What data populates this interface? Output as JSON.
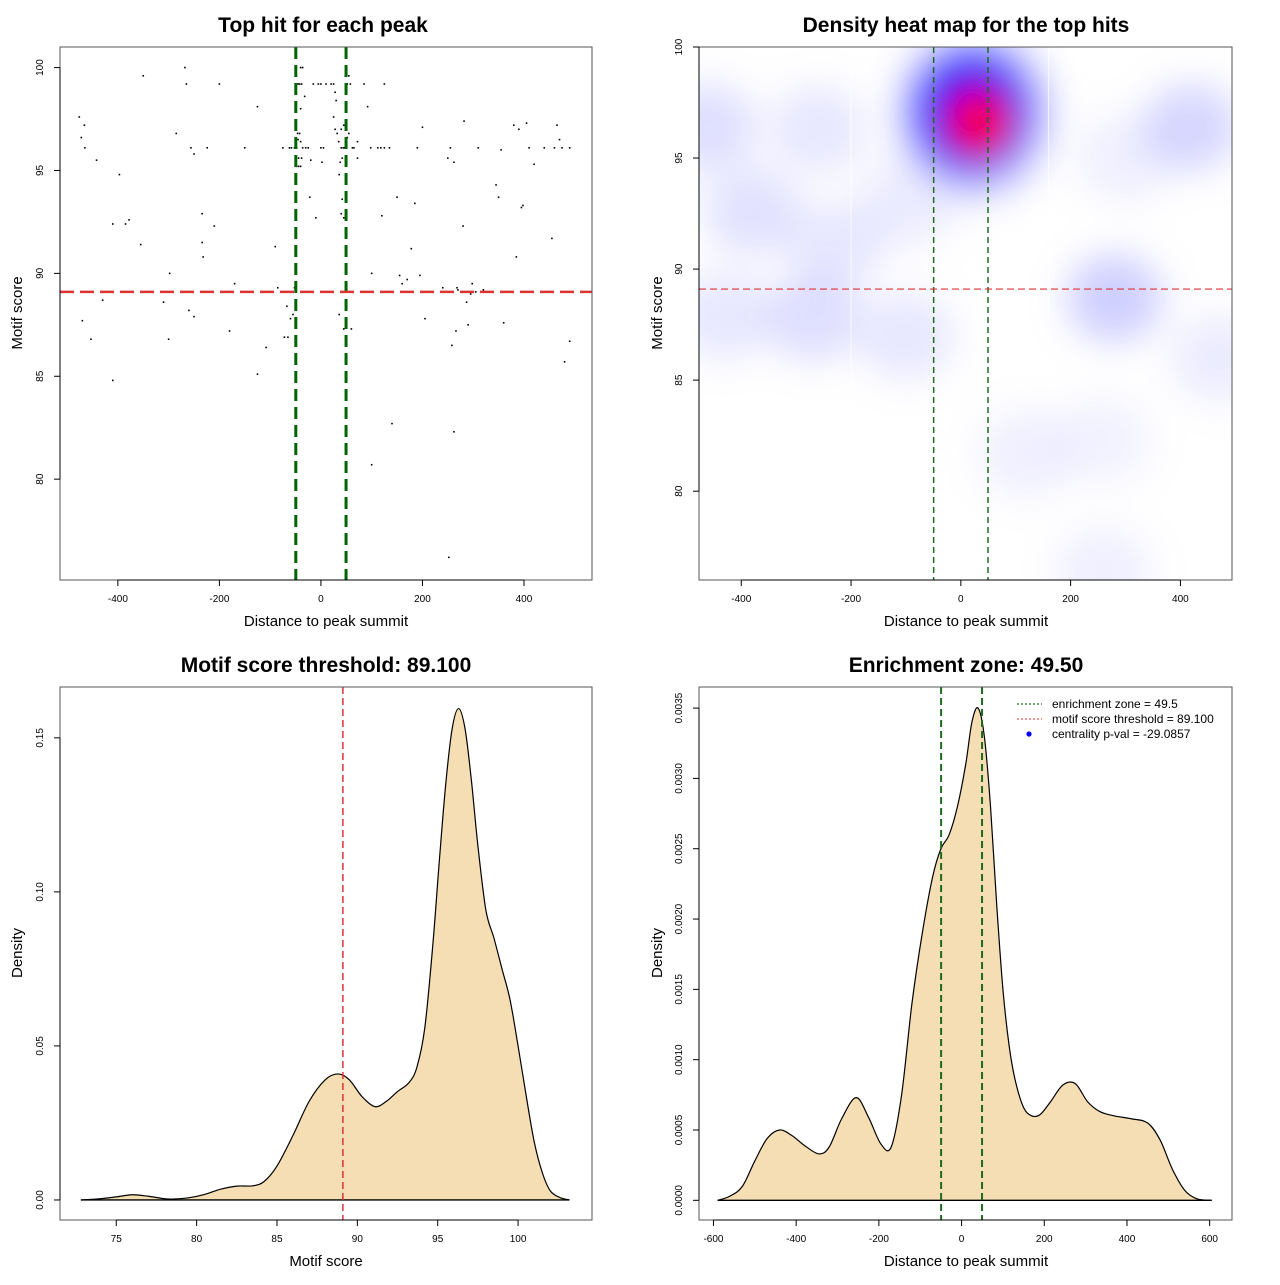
{
  "chart_data": [
    {
      "id": "scatter",
      "type": "scatter",
      "title": "Top hit for each peak",
      "xlabel": "Distance to peak summit",
      "ylabel": "Motif score",
      "xlim": [
        -514,
        534
      ],
      "ylim": [
        75.1,
        101
      ],
      "xticks": [
        -400,
        -200,
        0,
        200,
        400
      ],
      "yticks": [
        80,
        85,
        90,
        95,
        100
      ],
      "vlines": [
        -49.5,
        49.5
      ],
      "hline": 89.1,
      "vline_color": "#006400",
      "hline_color": "#dd3333",
      "points": [
        [
          -476,
          97.6
        ],
        [
          -472,
          96.6
        ],
        [
          -466,
          97.2
        ],
        [
          -465,
          96.1
        ],
        [
          -470,
          87.7
        ],
        [
          -453,
          86.8
        ],
        [
          -442,
          95.5
        ],
        [
          -430,
          88.7
        ],
        [
          -410,
          84.8
        ],
        [
          -410,
          92.4
        ],
        [
          -397,
          94.8
        ],
        [
          -385,
          92.4
        ],
        [
          -378,
          92.6
        ],
        [
          -350,
          99.6
        ],
        [
          -355,
          91.4
        ],
        [
          -300,
          86.8
        ],
        [
          -310,
          88.6
        ],
        [
          -298,
          90.0
        ],
        [
          -285,
          96.8
        ],
        [
          -268,
          100.0
        ],
        [
          -265,
          99.2
        ],
        [
          -260,
          88.2
        ],
        [
          -256,
          96.1
        ],
        [
          -250,
          87.9
        ],
        [
          -250,
          95.8
        ],
        [
          -234,
          92.9
        ],
        [
          -234,
          91.5
        ],
        [
          -232,
          90.8
        ],
        [
          -224,
          96.1
        ],
        [
          -210,
          92.3
        ],
        [
          -200,
          99.2
        ],
        [
          -180,
          87.2
        ],
        [
          -170,
          89.5
        ],
        [
          -150,
          96.1
        ],
        [
          -125,
          98.1
        ],
        [
          -125,
          85.1
        ],
        [
          -108,
          86.4
        ],
        [
          -90,
          91.3
        ],
        [
          -85,
          89.3
        ],
        [
          -75,
          96.1
        ],
        [
          -72,
          86.9
        ],
        [
          -67,
          88.4
        ],
        [
          -62,
          96.1
        ],
        [
          -58,
          96.1
        ],
        [
          -52,
          96.1
        ],
        [
          -48,
          96.1
        ],
        [
          -45,
          96.5
        ],
        [
          -44,
          95.2
        ],
        [
          -40,
          100.0
        ],
        [
          -36,
          100.0
        ],
        [
          -42,
          99.2
        ],
        [
          -38,
          99.2
        ],
        [
          -45,
          99.2
        ],
        [
          -32,
          98.6
        ],
        [
          -40,
          98.0
        ],
        [
          -42,
          96.8
        ],
        [
          -46,
          96.8
        ],
        [
          -40,
          96.4
        ],
        [
          -38,
          95.6
        ],
        [
          -44,
          95.6
        ],
        [
          -48,
          95.2
        ],
        [
          -40,
          95.2
        ],
        [
          -36,
          96.1
        ],
        [
          -30,
          96.1
        ],
        [
          -25,
          96.1
        ],
        [
          -20,
          95.5
        ],
        [
          -22,
          93.7
        ],
        [
          -15,
          99.2
        ],
        [
          -5,
          99.2
        ],
        [
          0,
          99.2
        ],
        [
          -10,
          92.7
        ],
        [
          -55,
          88.0
        ],
        [
          -60,
          87.8
        ],
        [
          -65,
          86.9
        ],
        [
          -52,
          89.3
        ],
        [
          0,
          96.1
        ],
        [
          5,
          96.1
        ],
        [
          2,
          95.4
        ],
        [
          10,
          99.2
        ],
        [
          20,
          99.2
        ],
        [
          25,
          99.2
        ],
        [
          28,
          98.8
        ],
        [
          30,
          98.4
        ],
        [
          25,
          97.6
        ],
        [
          28,
          97.0
        ],
        [
          32,
          96.8
        ],
        [
          35,
          96.4
        ],
        [
          40,
          96.1
        ],
        [
          44,
          96.1
        ],
        [
          47,
          96.1
        ],
        [
          50,
          96.1
        ],
        [
          52,
          96.6
        ],
        [
          55,
          96.8
        ],
        [
          45,
          97.2
        ],
        [
          40,
          97.0
        ],
        [
          42,
          95.6
        ],
        [
          38,
          95.4
        ],
        [
          36,
          94.8
        ],
        [
          40,
          92.9
        ],
        [
          45,
          92.7
        ],
        [
          52,
          99.2
        ],
        [
          55,
          99.6
        ],
        [
          50,
          100.0
        ],
        [
          48,
          99.6
        ],
        [
          58,
          99.2
        ],
        [
          62,
          96.1
        ],
        [
          65,
          96.1
        ],
        [
          72,
          95.6
        ],
        [
          42,
          93.6
        ],
        [
          36,
          88.0
        ],
        [
          45,
          87.3
        ],
        [
          60,
          87.3
        ],
        [
          72,
          96.4
        ],
        [
          85,
          99.2
        ],
        [
          92,
          98.1
        ],
        [
          98,
          96.1
        ],
        [
          100,
          90.0
        ],
        [
          112,
          96.1
        ],
        [
          118,
          96.1
        ],
        [
          120,
          92.8
        ],
        [
          125,
          99.2
        ],
        [
          125,
          96.1
        ],
        [
          135,
          96.1
        ],
        [
          140,
          82.7
        ],
        [
          150,
          93.7
        ],
        [
          155,
          89.9
        ],
        [
          160,
          89.5
        ],
        [
          170,
          89.7
        ],
        [
          178,
          91.2
        ],
        [
          185,
          93.4
        ],
        [
          190,
          96.1
        ],
        [
          195,
          89.9
        ],
        [
          200,
          97.1
        ],
        [
          205,
          87.8
        ],
        [
          240,
          89.3
        ],
        [
          250,
          95.6
        ],
        [
          255,
          96.1
        ],
        [
          258,
          86.5
        ],
        [
          262,
          95.4
        ],
        [
          266,
          87.2
        ],
        [
          268,
          89.3
        ],
        [
          270,
          89.2
        ],
        [
          280,
          92.3
        ],
        [
          282,
          97.4
        ],
        [
          287,
          88.6
        ],
        [
          290,
          87.5
        ],
        [
          293,
          89.1
        ],
        [
          295,
          89.0
        ],
        [
          298,
          89.5
        ],
        [
          305,
          89.1
        ],
        [
          310,
          96.1
        ],
        [
          320,
          89.2
        ],
        [
          345,
          94.3
        ],
        [
          350,
          93.7
        ],
        [
          355,
          96.0
        ],
        [
          360,
          87.6
        ],
        [
          380,
          97.2
        ],
        [
          385,
          90.8
        ],
        [
          390,
          97.0
        ],
        [
          395,
          93.2
        ],
        [
          398,
          93.3
        ],
        [
          405,
          97.3
        ],
        [
          410,
          96.1
        ],
        [
          420,
          95.3
        ],
        [
          440,
          96.1
        ],
        [
          455,
          91.7
        ],
        [
          460,
          96.1
        ],
        [
          465,
          97.2
        ],
        [
          470,
          96.5
        ],
        [
          475,
          96.1
        ],
        [
          480,
          85.7
        ],
        [
          490,
          96.1
        ],
        [
          490,
          86.7
        ],
        [
          100,
          80.7
        ],
        [
          252,
          76.2
        ],
        [
          262,
          82.3
        ]
      ]
    },
    {
      "id": "heatmap",
      "type": "heatmap",
      "title": "Density heat map for the top hits",
      "xlabel": "Distance to peak summit",
      "ylabel": "Motif score",
      "xlim": [
        -477,
        494
      ],
      "ylim": [
        76,
        100
      ],
      "xticks": [
        -400,
        -200,
        0,
        200,
        400
      ],
      "yticks": [
        80,
        85,
        90,
        95,
        100
      ],
      "vlines": [
        -49.5,
        49.5
      ],
      "hline": 89.1,
      "vline_color": "#1e6b1e",
      "hline_color": "#dd3333",
      "colors": [
        "#ffffff",
        "#0000ff",
        "#ff0000"
      ],
      "hotspots": [
        {
          "x": 25,
          "y": 96.6,
          "intensity": 1.0
        },
        {
          "x": -40,
          "y": 97.4,
          "intensity": 0.55
        },
        {
          "x": 70,
          "y": 97.0,
          "intensity": 0.5
        },
        {
          "x": 280,
          "y": 88.7,
          "intensity": 0.3
        },
        {
          "x": 420,
          "y": 96.4,
          "intensity": 0.25
        },
        {
          "x": -460,
          "y": 96.4,
          "intensity": 0.2
        },
        {
          "x": -260,
          "y": 96.3,
          "intensity": 0.15
        },
        {
          "x": -380,
          "y": 92.6,
          "intensity": 0.18
        },
        {
          "x": -270,
          "y": 87.8,
          "intensity": 0.2
        },
        {
          "x": -430,
          "y": 87.9,
          "intensity": 0.15
        },
        {
          "x": -100,
          "y": 87.0,
          "intensity": 0.15
        },
        {
          "x": -230,
          "y": 91.0,
          "intensity": 0.15
        },
        {
          "x": -100,
          "y": 93.0,
          "intensity": 0.12
        },
        {
          "x": 120,
          "y": 81.7,
          "intensity": 0.1
        },
        {
          "x": 260,
          "y": 82.3,
          "intensity": 0.08
        },
        {
          "x": 260,
          "y": 76.4,
          "intensity": 0.1
        },
        {
          "x": 470,
          "y": 86.0,
          "intensity": 0.12
        },
        {
          "x": 300,
          "y": 95.0,
          "intensity": 0.1
        }
      ]
    },
    {
      "id": "score-density",
      "type": "area",
      "title": "Motif score threshold: 89.100",
      "xlabel": "Motif score",
      "ylabel": "Density",
      "xlim": [
        71.5,
        104.6
      ],
      "ylim": [
        -0.0065,
        0.1665
      ],
      "xticks": [
        75,
        80,
        85,
        90,
        95,
        100
      ],
      "yticks": [
        0.0,
        0.05,
        0.1,
        0.15
      ],
      "ytick_labels": [
        "0.00",
        "0.05",
        "0.10",
        "0.15"
      ],
      "fill": "#f5deb3",
      "vline": 89.1,
      "vline_color": "#dd3333",
      "x": [
        72.8,
        74.0,
        75.0,
        76.0,
        77.0,
        78.0,
        78.5,
        79.5,
        80.5,
        81.5,
        82.5,
        83.5,
        84.2,
        85.0,
        86.0,
        87.0,
        88.0,
        88.8,
        89.5,
        90.3,
        91.1,
        91.8,
        92.5,
        93.2,
        93.7,
        94.2,
        94.7,
        95.1,
        95.5,
        95.9,
        96.3,
        96.7,
        97.1,
        97.5,
        98.0,
        98.5,
        99.0,
        99.5,
        100.0,
        100.5,
        101.0,
        101.5,
        102.0,
        102.6,
        103.2
      ],
      "y": [
        0.0,
        0.0004,
        0.001,
        0.0017,
        0.0012,
        0.0004,
        0.0003,
        0.0007,
        0.0018,
        0.0035,
        0.0045,
        0.0046,
        0.006,
        0.011,
        0.021,
        0.032,
        0.039,
        0.0409,
        0.039,
        0.0335,
        0.0303,
        0.032,
        0.0352,
        0.038,
        0.043,
        0.056,
        0.083,
        0.11,
        0.135,
        0.153,
        0.1595,
        0.153,
        0.136,
        0.115,
        0.094,
        0.085,
        0.075,
        0.065,
        0.05,
        0.034,
        0.019,
        0.009,
        0.003,
        0.0008,
        0.0
      ]
    },
    {
      "id": "distance-density",
      "type": "area",
      "title": "Enrichment zone: 49.50",
      "xlabel": "Distance to peak summit",
      "ylabel": "Density",
      "xlim": [
        -635,
        654
      ],
      "ylim": [
        -0.00014,
        0.00365
      ],
      "xticks": [
        -600,
        -400,
        -200,
        0,
        200,
        400,
        600
      ],
      "yticks": [
        0.0,
        0.0005,
        0.001,
        0.0015,
        0.002,
        0.0025,
        0.003,
        0.0035
      ],
      "ytick_labels": [
        "0.0000",
        "0.0005",
        "0.0010",
        "0.0015",
        "0.0020",
        "0.0025",
        "0.0030",
        "0.0035"
      ],
      "fill": "#f5deb3",
      "vlines": [
        -49.5,
        49.5
      ],
      "vline_color": "#1e6b1e",
      "x": [
        -590,
        -560,
        -530,
        -500,
        -470,
        -440,
        -410,
        -380,
        -345,
        -320,
        -290,
        -255,
        -225,
        -195,
        -170,
        -145,
        -120,
        -95,
        -70,
        -50,
        -30,
        -10,
        10,
        25,
        40,
        55,
        70,
        85,
        100,
        115,
        130,
        150,
        170,
        190,
        215,
        245,
        275,
        305,
        335,
        370,
        410,
        450,
        480,
        510,
        540,
        570,
        605
      ],
      "y": [
        0.0,
        3e-05,
        0.0001,
        0.00028,
        0.00044,
        0.0005,
        0.00046,
        0.00039,
        0.00033,
        0.00038,
        0.00058,
        0.00073,
        0.00059,
        0.0004,
        0.00038,
        0.00075,
        0.0014,
        0.0019,
        0.0023,
        0.0025,
        0.0026,
        0.0028,
        0.0031,
        0.0034,
        0.0035,
        0.0033,
        0.0028,
        0.0021,
        0.0015,
        0.0011,
        0.00085,
        0.00066,
        0.0006,
        0.00061,
        0.0007,
        0.00082,
        0.00083,
        0.0007,
        0.00063,
        0.0006,
        0.00058,
        0.00055,
        0.00043,
        0.00022,
        7e-05,
        1e-05,
        0.0
      ],
      "legend": {
        "position": "top-right",
        "items": [
          {
            "label": "enrichment zone = 49.5",
            "symbol": "dotted-line",
            "color": "#1e7b1e"
          },
          {
            "label": "motif score threshold = 89.100",
            "symbol": "dotted-line",
            "color": "#ee5555"
          },
          {
            "label": "centrality p-val = -29.0857",
            "symbol": "dot",
            "color": "#0000ff"
          }
        ]
      }
    }
  ]
}
